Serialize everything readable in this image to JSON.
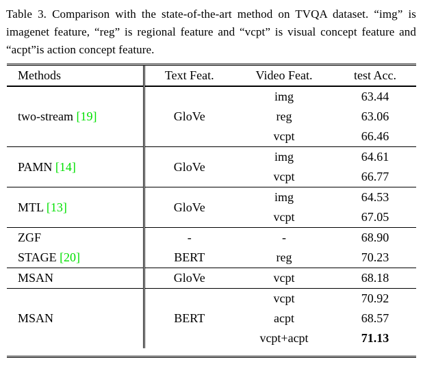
{
  "caption": {
    "text": "Table 3. Comparison with the state-of-the-art method on TVQA dataset. “img” is imagenet feature, “reg” is regional feature and “vcpt” is visual concept feature and “acpt”is action concept feature."
  },
  "table": {
    "headers": {
      "methods": "Methods",
      "text_feat": "Text Feat.",
      "video_feat": "Video Feat.",
      "test_acc": "test Acc."
    },
    "groups": [
      {
        "method": "two-stream",
        "cite": "[19]",
        "text_feat": "GloVe",
        "rows": [
          {
            "video_feat": "img",
            "acc": "63.44"
          },
          {
            "video_feat": "reg",
            "acc": "63.06"
          },
          {
            "video_feat": "vcpt",
            "acc": "66.46"
          }
        ]
      },
      {
        "method": "PAMN",
        "cite": "[14]",
        "text_feat": "GloVe",
        "rows": [
          {
            "video_feat": "img",
            "acc": "64.61"
          },
          {
            "video_feat": "vcpt",
            "acc": "66.77"
          }
        ]
      },
      {
        "method": "MTL",
        "cite": "[13]",
        "text_feat": "GloVe",
        "rows": [
          {
            "video_feat": "img",
            "acc": "64.53"
          },
          {
            "video_feat": "vcpt",
            "acc": "67.05"
          }
        ]
      },
      {
        "method": "ZGF",
        "cite": "",
        "text_feat": "-",
        "rows": [
          {
            "video_feat": "-",
            "acc": "68.90"
          }
        ]
      },
      {
        "method": "STAGE",
        "cite": "[20]",
        "text_feat": "BERT",
        "rows": [
          {
            "video_feat": "reg",
            "acc": "70.23"
          }
        ]
      },
      {
        "method": "MSAN",
        "cite": "",
        "text_feat": "GloVe",
        "rows": [
          {
            "video_feat": "vcpt",
            "acc": "68.18"
          }
        ]
      },
      {
        "method": "MSAN",
        "cite": "",
        "text_feat": "BERT",
        "rows": [
          {
            "video_feat": "vcpt",
            "acc": "70.92"
          },
          {
            "video_feat": "acpt",
            "acc": "68.57"
          },
          {
            "video_feat": "vcpt+acpt",
            "acc": "71.13",
            "bold": true
          }
        ]
      }
    ]
  },
  "colors": {
    "citation_green": "#00e000",
    "text": "#000000",
    "background": "#ffffff"
  }
}
